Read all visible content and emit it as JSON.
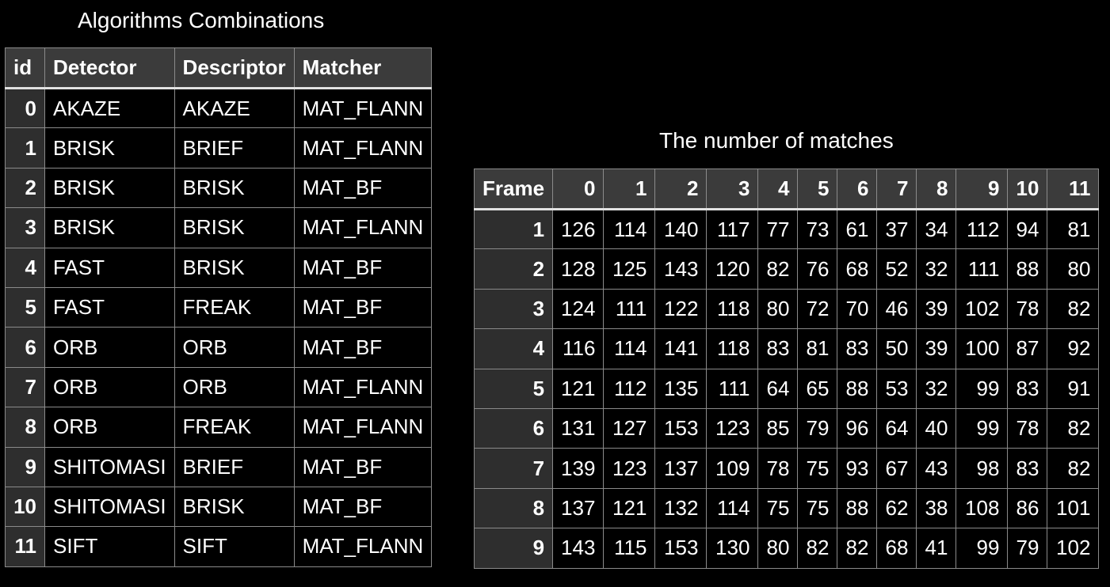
{
  "left_title": "Algorithms Combinations",
  "right_title": "The number of matches",
  "algorithms": {
    "headers": [
      "id",
      "Detector",
      "Descriptor",
      "Matcher"
    ],
    "rows": [
      [
        "0",
        "AKAZE",
        "AKAZE",
        "MAT_FLANN"
      ],
      [
        "1",
        "BRISK",
        "BRIEF",
        "MAT_FLANN"
      ],
      [
        "2",
        "BRISK",
        "BRISK",
        "MAT_BF"
      ],
      [
        "3",
        "BRISK",
        "BRISK",
        "MAT_FLANN"
      ],
      [
        "4",
        "FAST",
        "BRISK",
        "MAT_BF"
      ],
      [
        "5",
        "FAST",
        "FREAK",
        "MAT_BF"
      ],
      [
        "6",
        "ORB",
        "ORB",
        "MAT_BF"
      ],
      [
        "7",
        "ORB",
        "ORB",
        "MAT_FLANN"
      ],
      [
        "8",
        "ORB",
        "FREAK",
        "MAT_FLANN"
      ],
      [
        "9",
        "SHITOMASI",
        "BRIEF",
        "MAT_BF"
      ],
      [
        "10",
        "SHITOMASI",
        "BRISK",
        "MAT_BF"
      ],
      [
        "11",
        "SIFT",
        "SIFT",
        "MAT_FLANN"
      ]
    ]
  },
  "matches": {
    "headers": [
      "Frame",
      "0",
      "1",
      "2",
      "3",
      "4",
      "5",
      "6",
      "7",
      "8",
      "9",
      "10",
      "11"
    ],
    "rows": [
      [
        "1",
        "126",
        "114",
        "140",
        "117",
        "77",
        "73",
        "61",
        "37",
        "34",
        "112",
        "94",
        "81"
      ],
      [
        "2",
        "128",
        "125",
        "143",
        "120",
        "82",
        "76",
        "68",
        "52",
        "32",
        "111",
        "88",
        "80"
      ],
      [
        "3",
        "124",
        "111",
        "122",
        "118",
        "80",
        "72",
        "70",
        "46",
        "39",
        "102",
        "78",
        "82"
      ],
      [
        "4",
        "116",
        "114",
        "141",
        "118",
        "83",
        "81",
        "83",
        "50",
        "39",
        "100",
        "87",
        "92"
      ],
      [
        "5",
        "121",
        "112",
        "135",
        "111",
        "64",
        "65",
        "88",
        "53",
        "32",
        "99",
        "83",
        "91"
      ],
      [
        "6",
        "131",
        "127",
        "153",
        "123",
        "85",
        "79",
        "96",
        "64",
        "40",
        "99",
        "78",
        "82"
      ],
      [
        "7",
        "139",
        "123",
        "137",
        "109",
        "78",
        "75",
        "93",
        "67",
        "43",
        "98",
        "83",
        "82"
      ],
      [
        "8",
        "137",
        "121",
        "132",
        "114",
        "75",
        "75",
        "88",
        "62",
        "38",
        "108",
        "86",
        "101"
      ],
      [
        "9",
        "143",
        "115",
        "153",
        "130",
        "80",
        "82",
        "82",
        "68",
        "41",
        "99",
        "79",
        "102"
      ]
    ]
  }
}
